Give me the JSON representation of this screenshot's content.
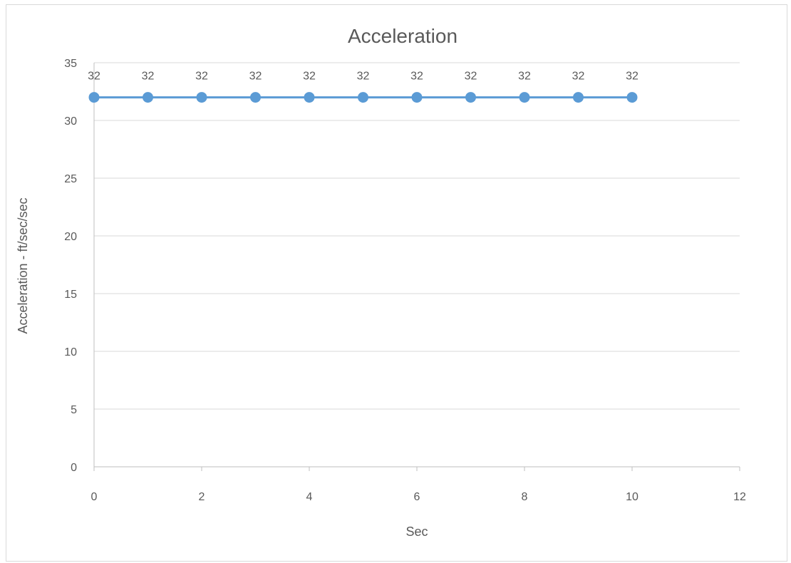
{
  "chart_data": {
    "type": "scatter",
    "title": "Acceleration",
    "xlabel": "Sec",
    "ylabel": "Acceleration - ft/sec/sec",
    "xlim": [
      0,
      12
    ],
    "ylim": [
      0,
      35
    ],
    "xticks": [
      0,
      2,
      4,
      6,
      8,
      10,
      12
    ],
    "yticks": [
      0,
      5,
      10,
      15,
      20,
      25,
      30,
      35
    ],
    "grid": "horizontal",
    "legend": "none",
    "series": [
      {
        "x": [
          0,
          1,
          2,
          3,
          4,
          5,
          6,
          7,
          8,
          9,
          10
        ],
        "y": [
          32,
          32,
          32,
          32,
          32,
          32,
          32,
          32,
          32,
          32,
          32
        ],
        "data_labels": [
          "32",
          "32",
          "32",
          "32",
          "32",
          "32",
          "32",
          "32",
          "32",
          "32",
          "32"
        ],
        "color": "#5b9bd5",
        "lines": true,
        "markers": true
      }
    ]
  }
}
